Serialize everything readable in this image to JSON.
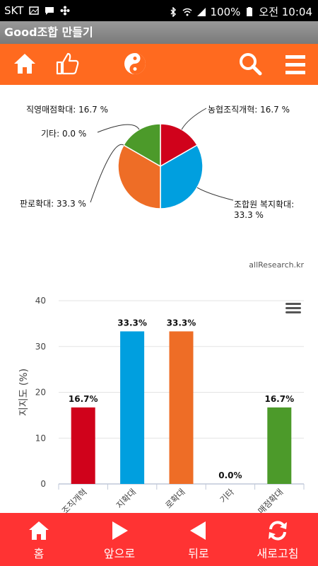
{
  "status": {
    "carrier": "SKT",
    "battery": "100%",
    "time": "오전 10:04"
  },
  "app": {
    "title": "Good조합 만들기"
  },
  "toolbar": {
    "icons": [
      "home-icon",
      "thumbs-up-icon",
      "yin-yang-icon",
      "search-icon",
      "menu-icon"
    ]
  },
  "pie": {
    "labels": [
      {
        "text": "농협조직개혁: 16.7 %"
      },
      {
        "text": "조합원 복지확대:"
      },
      {
        "text": "33.3 %"
      },
      {
        "text": "판로확대: 33.3 %"
      },
      {
        "text": "기타: 0.0 %"
      },
      {
        "text": "직영매점확대: 16.7 %"
      }
    ]
  },
  "credit": "allResearch.kr",
  "bar": {
    "ylabel": "지지도 (%)",
    "yticks": [
      "0",
      "10",
      "20",
      "30",
      "40"
    ],
    "menu_icon": "hamburger-icon"
  },
  "chart_data": [
    {
      "type": "pie",
      "categories": [
        "농협조직개혁",
        "조합원 복지확대",
        "판로확대",
        "기타",
        "직영매점확대"
      ],
      "values": [
        16.7,
        33.3,
        33.3,
        0.0,
        16.7
      ],
      "colors": [
        "#d0021b",
        "#009fdf",
        "#ee6d26",
        "#999999",
        "#4c9a2a"
      ]
    },
    {
      "type": "bar",
      "categories": [
        "조직개혁",
        "지확대",
        "로확대",
        "기타",
        "매점확대"
      ],
      "values": [
        16.7,
        33.3,
        33.3,
        0.0,
        16.7
      ],
      "data_labels": [
        "16.7%",
        "33.3%",
        "33.3%",
        "0.0%",
        "16.7%"
      ],
      "colors": [
        "#d0021b",
        "#009fdf",
        "#ee6d26",
        "#999999",
        "#4c9a2a"
      ],
      "ylabel": "지지도 (%)",
      "ylim": [
        0,
        40
      ],
      "grid": true
    }
  ],
  "bottom_nav": {
    "home": "홈",
    "forward": "앞으로",
    "back": "뒤로",
    "refresh": "새로고침"
  },
  "colors": {
    "toolbar": "#ff6a1f",
    "bottom": "#ff3333",
    "status": "#000000"
  }
}
